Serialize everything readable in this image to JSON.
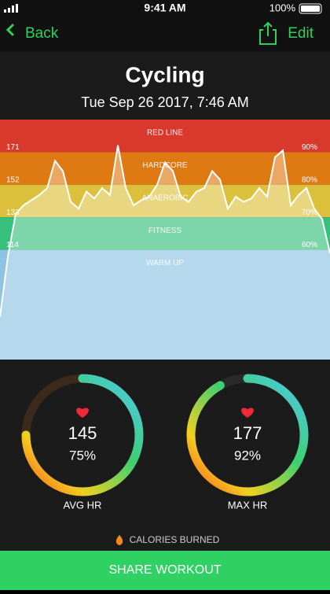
{
  "status_bar": {
    "time": "9:41 AM",
    "battery": "100%"
  },
  "nav": {
    "back": "Back",
    "edit": "Edit"
  },
  "header": {
    "title": "Cycling",
    "date": "Tue Sep 26 2017, 7:46 AM"
  },
  "chart_data": {
    "type": "area",
    "zones": [
      {
        "name": "RED LINE",
        "from": 171,
        "to": 190,
        "color": "#d9382c"
      },
      {
        "name": "HARDCORE",
        "from": 152,
        "to": 171,
        "color": "#df7a12"
      },
      {
        "name": "ANAEROBIC",
        "from": 133,
        "to": 152,
        "color": "#dcc03c"
      },
      {
        "name": "FITNESS",
        "from": 114,
        "to": 133,
        "color": "#36c07c"
      },
      {
        "name": "WARM UP",
        "from": 50,
        "to": 114,
        "color": "#8fc3e4"
      }
    ],
    "series": [
      {
        "color": "#ffffff",
        "values": [
          75,
          110,
          135,
          140,
          143,
          146,
          150,
          166,
          160,
          142,
          138,
          148,
          144,
          150,
          146,
          175,
          150,
          140,
          143,
          145,
          152,
          165,
          160,
          145,
          142,
          148,
          150,
          160,
          155,
          138,
          145,
          142,
          144,
          150,
          145,
          168,
          172,
          140,
          146,
          150,
          138,
          132,
          112
        ]
      }
    ],
    "ylim": [
      50,
      190
    ],
    "yticks": [
      171,
      152,
      133,
      114
    ],
    "y2lim": [
      26.3,
      100
    ],
    "y2ticks": [
      {
        "value": 90,
        "label": "90%"
      },
      {
        "value": 80,
        "label": "80%"
      },
      {
        "value": 70,
        "label": "70%"
      },
      {
        "value": 60,
        "label": "60%"
      }
    ]
  },
  "summary": [
    {
      "value": 145,
      "percent": 75,
      "percent_label": "75%",
      "label": "AVG HR",
      "track": "#3a2a1c"
    },
    {
      "value": 177,
      "percent": 92,
      "percent_label": "92%",
      "label": "MAX HR",
      "track": "#2a2a2a"
    }
  ],
  "calories": "CALORIES BURNED",
  "button": "SHARE WORKOUT"
}
